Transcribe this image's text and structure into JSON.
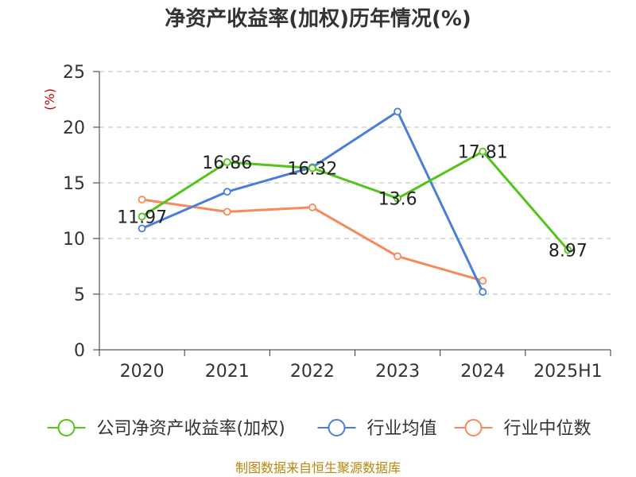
{
  "chart_data": {
    "type": "line",
    "title": "净资产收益率(加权)历年情况(%)",
    "ylabel": "(%)",
    "categories": [
      "2020",
      "2021",
      "2022",
      "2023",
      "2024",
      "2025H1"
    ],
    "ylim": [
      0,
      25
    ],
    "yticks": [
      0,
      5,
      10,
      15,
      20,
      25
    ],
    "grid": true,
    "legend_position": "bottom",
    "series": [
      {
        "name": "公司净资产收益率(加权)",
        "color": "#52c41a",
        "values": [
          11.97,
          16.86,
          16.32,
          13.6,
          17.81,
          8.97
        ],
        "labels": [
          "11.97",
          "16.86",
          "16.32",
          "13.6",
          "17.81",
          "8.97"
        ]
      },
      {
        "name": "行业均值",
        "color": "#4a7fd9",
        "values": [
          10.9,
          14.2,
          16.4,
          21.4,
          5.2,
          null
        ]
      },
      {
        "name": "行业中位数",
        "color": "#f7895a",
        "values": [
          13.5,
          12.4,
          12.8,
          8.4,
          6.2,
          null
        ]
      }
    ]
  },
  "footer": {
    "source": "制图数据来自恒生聚源数据库"
  }
}
